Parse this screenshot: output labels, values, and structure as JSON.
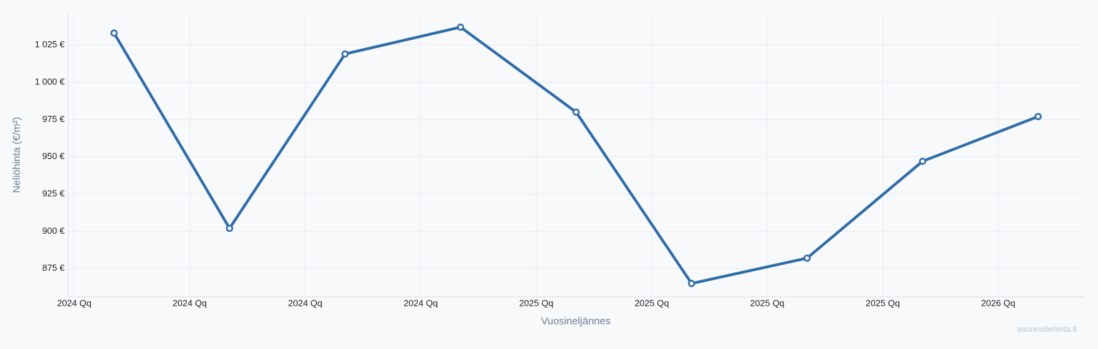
{
  "chart_data": {
    "type": "line",
    "x_label": "Vuosineljännes",
    "y_label": "Neliöhinta (€/m²)",
    "watermark": "asunnollehinta.fi",
    "categories": [
      "2024 Qq",
      "2024 Qq",
      "2024 Qq",
      "2024 Qq",
      "2025 Qq",
      "2025 Qq",
      "2025 Qq",
      "2025 Qq",
      "2026 Qq"
    ],
    "series": [
      {
        "name": "Neliöhinta",
        "color": "#2f6ca7",
        "values": [
          1033,
          902,
          1019,
          1037,
          980,
          865,
          882,
          947,
          977
        ]
      }
    ],
    "ylim": [
      856,
      1046
    ],
    "yticks": [
      {
        "value": 875,
        "label": "875 €"
      },
      {
        "value": 900,
        "label": "900 €"
      },
      {
        "value": 925,
        "label": "925 €"
      },
      {
        "value": 950,
        "label": "950 €"
      },
      {
        "value": 975,
        "label": "975 €"
      },
      {
        "value": 1000,
        "label": "1 000 €"
      },
      {
        "value": 1025,
        "label": "1 025 €"
      }
    ],
    "grid": true
  }
}
